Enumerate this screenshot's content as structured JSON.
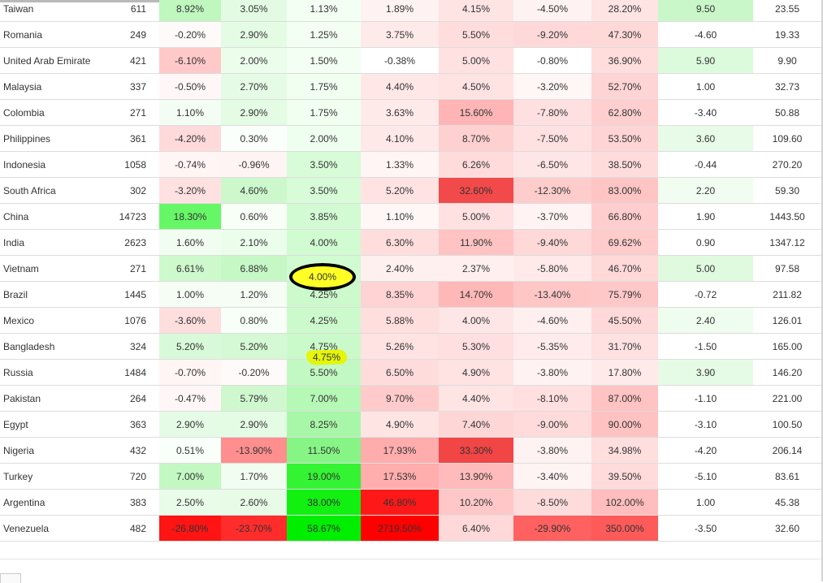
{
  "colors": {
    "green_max": "#00ff00",
    "red_max": "#ff0000",
    "neutral": "#ffffff",
    "annotation_ellipse": "#000000",
    "annotation_highlight": "#ffff00"
  },
  "annotations": {
    "ellipse_text": "4.00%",
    "marker_text": "4.75%"
  },
  "rows": [
    {
      "country": "Taiwan",
      "n": "611",
      "c": [
        [
          "8.92%",
          "#bff7bf"
        ],
        [
          "3.05%",
          "#e3fbe3"
        ],
        [
          "1.13%",
          "#f4fff4"
        ],
        [
          "1.89%",
          "#fff2f2"
        ],
        [
          "4.15%",
          "#ffe4e4"
        ],
        [
          "-4.50%",
          "#fff2f2"
        ],
        [
          "28.20%",
          "#ffe4e4"
        ],
        [
          "9.50",
          "#c9f7c9"
        ],
        [
          "23.55",
          "#ffffff"
        ]
      ]
    },
    {
      "country": "Romania",
      "n": "249",
      "c": [
        [
          "-0.20%",
          "#fffafa"
        ],
        [
          "2.90%",
          "#e4fbe4"
        ],
        [
          "1.25%",
          "#f3fff3"
        ],
        [
          "3.75%",
          "#ffeaea"
        ],
        [
          "5.50%",
          "#ffdddd"
        ],
        [
          "-9.20%",
          "#ffd9d9"
        ],
        [
          "47.30%",
          "#ffd8d8"
        ],
        [
          "-4.60",
          "#ffffff"
        ],
        [
          "19.33",
          "#ffffff"
        ]
      ]
    },
    {
      "country": "United Arab Emirate",
      "n": "421",
      "c": [
        [
          "-6.10%",
          "#ffc9c9"
        ],
        [
          "2.00%",
          "#ecfdec"
        ],
        [
          "1.50%",
          "#f2fff2"
        ],
        [
          "-0.38%",
          "#ffffff"
        ],
        [
          "5.00%",
          "#ffe1e1"
        ],
        [
          "-0.80%",
          "#ffffff"
        ],
        [
          "36.90%",
          "#ffdddd"
        ],
        [
          "5.90",
          "#dcfadc"
        ],
        [
          "9.90",
          "#ffffff"
        ]
      ]
    },
    {
      "country": "Malaysia",
      "n": "337",
      "c": [
        [
          "-0.50%",
          "#fff7f7"
        ],
        [
          "2.70%",
          "#e6fbe6"
        ],
        [
          "1.75%",
          "#f0fff0"
        ],
        [
          "4.40%",
          "#ffe7e7"
        ],
        [
          "4.50%",
          "#ffe3e3"
        ],
        [
          "-3.20%",
          "#fff6f6"
        ],
        [
          "52.70%",
          "#ffd4d4"
        ],
        [
          "1.00",
          "#ffffff"
        ],
        [
          "32.73",
          "#ffffff"
        ]
      ]
    },
    {
      "country": "Colombia",
      "n": "271",
      "c": [
        [
          "1.10%",
          "#f4fdf4"
        ],
        [
          "2.90%",
          "#e4fbe4"
        ],
        [
          "1.75%",
          "#f0fff0"
        ],
        [
          "3.63%",
          "#ffeaea"
        ],
        [
          "15.60%",
          "#ffb5b5"
        ],
        [
          "-7.80%",
          "#ffe0e0"
        ],
        [
          "62.80%",
          "#ffcfcf"
        ],
        [
          "-3.40",
          "#ffffff"
        ],
        [
          "50.88",
          "#ffffff"
        ]
      ]
    },
    {
      "country": "Philippines",
      "n": "361",
      "c": [
        [
          "-4.20%",
          "#ffdada"
        ],
        [
          "0.30%",
          "#fbfffb"
        ],
        [
          "2.00%",
          "#efffef"
        ],
        [
          "4.10%",
          "#ffe8e8"
        ],
        [
          "8.70%",
          "#ffd0d0"
        ],
        [
          "-7.50%",
          "#ffe1e1"
        ],
        [
          "53.50%",
          "#ffd4d4"
        ],
        [
          "3.60",
          "#e8fbe8"
        ],
        [
          "109.60",
          "#ffffff"
        ]
      ]
    },
    {
      "country": "Indonesia",
      "n": "1058",
      "c": [
        [
          "-0.74%",
          "#fff5f5"
        ],
        [
          "-0.96%",
          "#fff4f4"
        ],
        [
          "3.50%",
          "#d7fcd7"
        ],
        [
          "1.33%",
          "#fff5f5"
        ],
        [
          "6.26%",
          "#ffdbdb"
        ],
        [
          "-6.50%",
          "#ffe6e6"
        ],
        [
          "38.50%",
          "#ffdcdc"
        ],
        [
          "-0.44",
          "#ffffff"
        ],
        [
          "270.20",
          "#ffffff"
        ]
      ]
    },
    {
      "country": "South Africa",
      "n": "302",
      "c": [
        [
          "-3.20%",
          "#ffe1e1"
        ],
        [
          "4.60%",
          "#ccf8cc"
        ],
        [
          "3.50%",
          "#d7fcd7"
        ],
        [
          "5.20%",
          "#ffe3e3"
        ],
        [
          "32.60%",
          "#f24a4a"
        ],
        [
          "-12.30%",
          "#ffcccc"
        ],
        [
          "83.00%",
          "#ffc5c5"
        ],
        [
          "2.20",
          "#f2fdf2"
        ],
        [
          "59.30",
          "#ffffff"
        ]
      ]
    },
    {
      "country": "China",
      "n": "14723",
      "c": [
        [
          "18.30%",
          "#66f766"
        ],
        [
          "0.60%",
          "#f7fff7"
        ],
        [
          "3.85%",
          "#d3fbd3"
        ],
        [
          "1.10%",
          "#fff6f6"
        ],
        [
          "5.00%",
          "#ffe1e1"
        ],
        [
          "-3.70%",
          "#fff3f3"
        ],
        [
          "66.80%",
          "#ffcdcd"
        ],
        [
          "1.90",
          "#ffffff"
        ],
        [
          "1443.50",
          "#ffffff"
        ]
      ]
    },
    {
      "country": "India",
      "n": "2623",
      "c": [
        [
          "1.60%",
          "#f0fdf0"
        ],
        [
          "2.10%",
          "#ebfdeb"
        ],
        [
          "4.00%",
          "#d1fbd1"
        ],
        [
          "6.30%",
          "#ffdddd"
        ],
        [
          "11.90%",
          "#ffc3c3"
        ],
        [
          "-9.40%",
          "#ffd8d8"
        ],
        [
          "69.62%",
          "#ffcbcb"
        ],
        [
          "0.90",
          "#ffffff"
        ],
        [
          "1347.12",
          "#ffffff"
        ]
      ]
    },
    {
      "country": "Vietnam",
      "n": "271",
      "c": [
        [
          "6.61%",
          "#cdf9cd"
        ],
        [
          "6.88%",
          "#c6f8c6"
        ],
        [
          "4.00%",
          "#d1fbd1"
        ],
        [
          "2.40%",
          "#fff0f0"
        ],
        [
          "2.37%",
          "#ffefef"
        ],
        [
          "-5.80%",
          "#ffe9e9"
        ],
        [
          "46.70%",
          "#ffd8d8"
        ],
        [
          "5.00",
          "#e0fae0"
        ],
        [
          "97.58",
          "#ffffff"
        ]
      ]
    },
    {
      "country": "Brazil",
      "n": "1445",
      "c": [
        [
          "1.00%",
          "#f5fdf5"
        ],
        [
          "1.20%",
          "#f5fdf5"
        ],
        [
          "4.25%",
          "#cdfacd"
        ],
        [
          "8.35%",
          "#ffd3d3"
        ],
        [
          "14.70%",
          "#ffb8b8"
        ],
        [
          "-13.40%",
          "#ffc6c6"
        ],
        [
          "75.79%",
          "#ffc8c8"
        ],
        [
          "-0.72",
          "#ffffff"
        ],
        [
          "211.82",
          "#ffffff"
        ]
      ]
    },
    {
      "country": "Mexico",
      "n": "1076",
      "c": [
        [
          "-3.60%",
          "#ffdede"
        ],
        [
          "0.80%",
          "#f8fff8"
        ],
        [
          "4.25%",
          "#cdfacd"
        ],
        [
          "5.88%",
          "#ffdede"
        ],
        [
          "4.00%",
          "#ffe6e6"
        ],
        [
          "-4.60%",
          "#ffefef"
        ],
        [
          "45.50%",
          "#ffd9d9"
        ],
        [
          "2.40",
          "#effdef"
        ],
        [
          "126.01",
          "#ffffff"
        ]
      ]
    },
    {
      "country": "Bangladesh",
      "n": "324",
      "c": [
        [
          "5.20%",
          "#d9fad9"
        ],
        [
          "5.20%",
          "#d4f9d4"
        ],
        [
          "4.75%",
          "#cafaca"
        ],
        [
          "5.26%",
          "#ffe2e2"
        ],
        [
          "5.30%",
          "#ffdfdf"
        ],
        [
          "-5.35%",
          "#ffebeb"
        ],
        [
          "31.70%",
          "#ffe1e1"
        ],
        [
          "-1.50",
          "#ffffff"
        ],
        [
          "165.00",
          "#ffffff"
        ]
      ]
    },
    {
      "country": "Russia",
      "n": "1484",
      "c": [
        [
          "-0.70%",
          "#fff5f5"
        ],
        [
          "-0.20%",
          "#fffafa"
        ],
        [
          "5.50%",
          "#c2f9c2"
        ],
        [
          "6.50%",
          "#ffdcdc"
        ],
        [
          "4.90%",
          "#ffe2e2"
        ],
        [
          "-3.80%",
          "#fff2f2"
        ],
        [
          "17.80%",
          "#ffeaea"
        ],
        [
          "3.90",
          "#e6fbe6"
        ],
        [
          "146.20",
          "#ffffff"
        ]
      ]
    },
    {
      "country": "Pakistan",
      "n": "264",
      "c": [
        [
          "-0.47%",
          "#fff7f7"
        ],
        [
          "5.79%",
          "#cff8cf"
        ],
        [
          "7.00%",
          "#b6f8b6"
        ],
        [
          "9.70%",
          "#ffcaca"
        ],
        [
          "4.40%",
          "#ffe4e4"
        ],
        [
          "-8.10%",
          "#ffdfdf"
        ],
        [
          "87.00%",
          "#ffc3c3"
        ],
        [
          "-1.10",
          "#ffffff"
        ],
        [
          "221.00",
          "#ffffff"
        ]
      ]
    },
    {
      "country": "Egypt",
      "n": "363",
      "c": [
        [
          "2.90%",
          "#e6fbe6"
        ],
        [
          "2.90%",
          "#e4fbe4"
        ],
        [
          "8.25%",
          "#a8f7a8"
        ],
        [
          "4.90%",
          "#ffe4e4"
        ],
        [
          "7.40%",
          "#ffd6d6"
        ],
        [
          "-9.00%",
          "#ffdbdb"
        ],
        [
          "90.00%",
          "#ffc2c2"
        ],
        [
          "-3.10",
          "#ffffff"
        ],
        [
          "100.50",
          "#ffffff"
        ]
      ]
    },
    {
      "country": "Nigeria",
      "n": "432",
      "c": [
        [
          "0.51%",
          "#f9fff9"
        ],
        [
          "-13.90%",
          "#ff8e8e"
        ],
        [
          "11.50%",
          "#86f586"
        ],
        [
          "17.93%",
          "#ffacac"
        ],
        [
          "33.30%",
          "#f24545"
        ],
        [
          "-3.80%",
          "#fff2f2"
        ],
        [
          "34.98%",
          "#ffdede"
        ],
        [
          "-4.20",
          "#ffffff"
        ],
        [
          "206.14",
          "#ffffff"
        ]
      ]
    },
    {
      "country": "Turkey",
      "n": "720",
      "c": [
        [
          "7.00%",
          "#c3f8c3"
        ],
        [
          "1.70%",
          "#f0fdf0"
        ],
        [
          "19.00%",
          "#33f333"
        ],
        [
          "17.53%",
          "#ffadad"
        ],
        [
          "13.90%",
          "#ffbbbb"
        ],
        [
          "-3.40%",
          "#fff4f4"
        ],
        [
          "39.50%",
          "#ffdbdb"
        ],
        [
          "-5.10",
          "#ffffff"
        ],
        [
          "83.61",
          "#ffffff"
        ]
      ]
    },
    {
      "country": "Argentina",
      "n": "383",
      "c": [
        [
          "2.50%",
          "#e9fbe9"
        ],
        [
          "2.60%",
          "#e7fbe7"
        ],
        [
          "38.00%",
          "#12f012"
        ],
        [
          "46.80%",
          "#ff1818"
        ],
        [
          "10.20%",
          "#ffc7c7"
        ],
        [
          "-8.50%",
          "#ffdcdc"
        ],
        [
          "102.00%",
          "#ffbdbd"
        ],
        [
          "1.00",
          "#ffffff"
        ],
        [
          "45.38",
          "#ffffff"
        ]
      ]
    },
    {
      "country": "Venezuela",
      "n": "482",
      "c": [
        [
          "-26.80%",
          "#ff1414"
        ],
        [
          "-23.70%",
          "#ff2c2c"
        ],
        [
          "58.67%",
          "#00ee00"
        ],
        [
          "2719.50%",
          "#ff0000"
        ],
        [
          "6.40%",
          "#ffd9d9"
        ],
        [
          "-29.90%",
          "#ff6060"
        ],
        [
          "350.00%",
          "#ff5a5a"
        ],
        [
          "-3.50",
          "#ffffff"
        ],
        [
          "32.60",
          "#ffffff"
        ]
      ]
    }
  ]
}
